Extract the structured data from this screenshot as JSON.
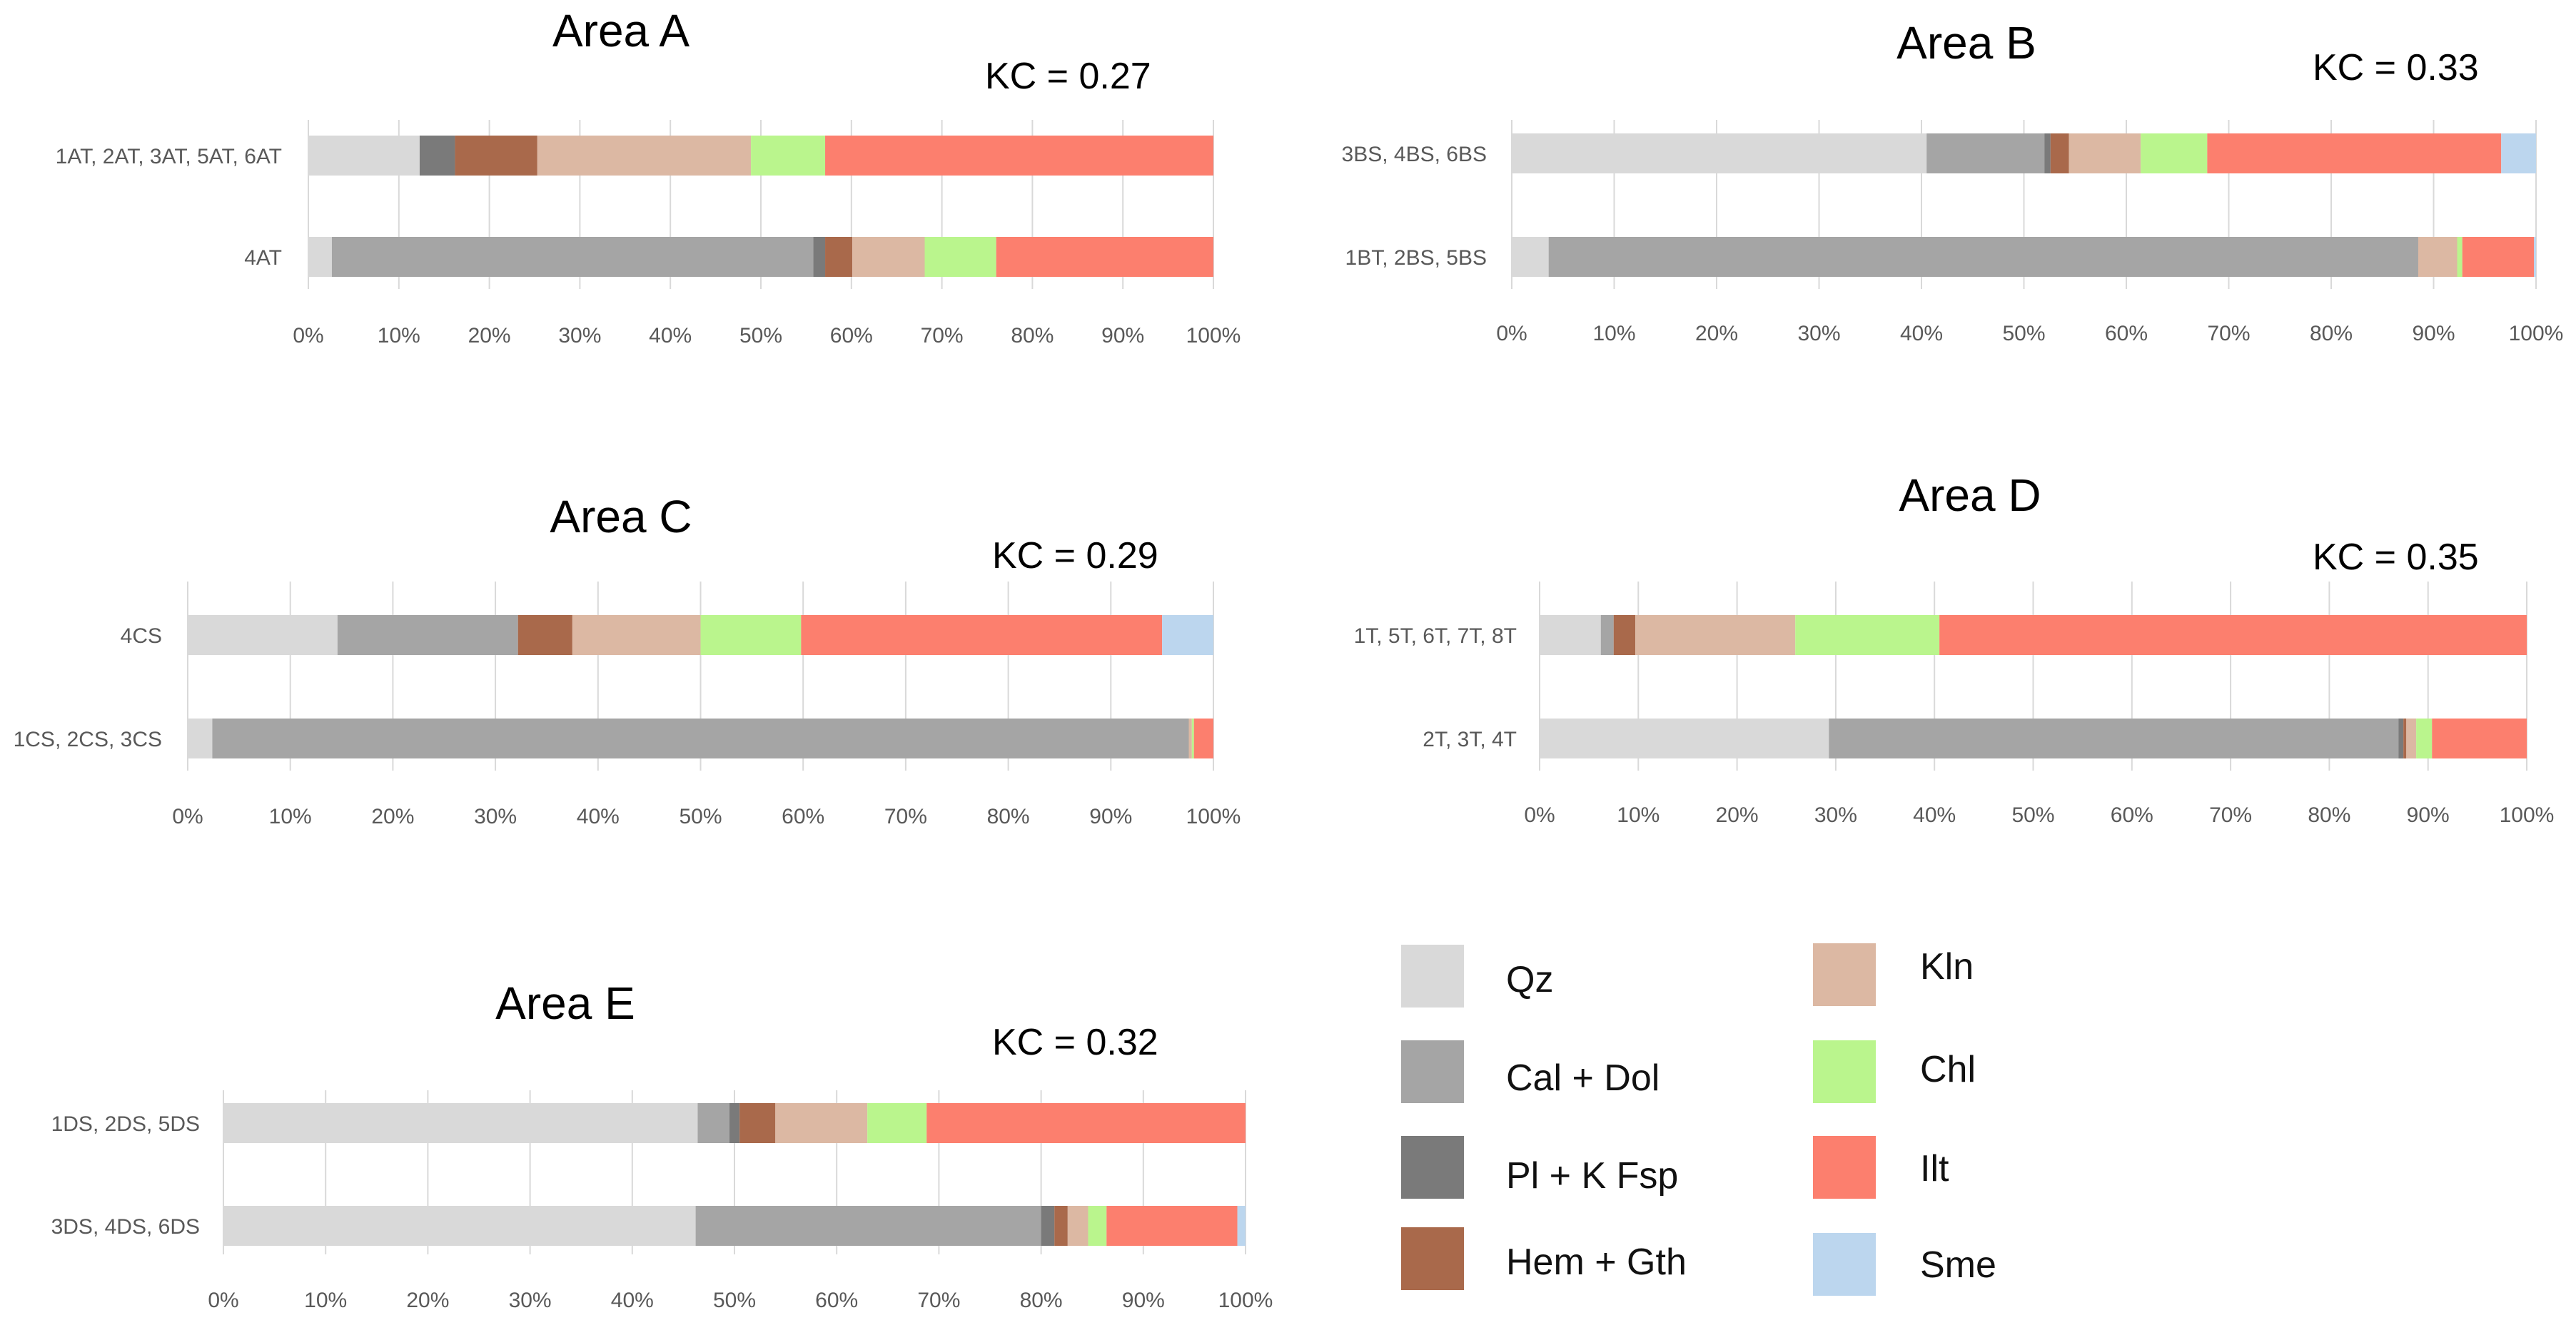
{
  "components": [
    "Qz",
    "Cal + Dol",
    "Pl + K Fsp",
    "Hem + Gth",
    "Kln",
    "Chl",
    "Ilt",
    "Sme"
  ],
  "colors": {
    "Qz": "#d9d9d9",
    "Cal + Dol": "#a5a5a5",
    "Pl + K Fsp": "#7a7a7a",
    "Hem + Gth": "#a9694b",
    "Kln": "#dcb8a3",
    "Chl": "#baf58d",
    "Ilt": "#fc7f6e",
    "Sme": "#bcd6ee"
  },
  "legend": {
    "items": [
      {
        "label": "Qz",
        "component": "Qz"
      },
      {
        "label": "Cal + Dol",
        "component": "Cal + Dol"
      },
      {
        "label": "Pl + K Fsp",
        "component": "Pl + K Fsp"
      },
      {
        "label": "Hem + Gth",
        "component": "Hem + Gth"
      },
      {
        "label": "Kln",
        "component": "Kln"
      },
      {
        "label": "Chl",
        "component": "Chl"
      },
      {
        "label": "Ilt",
        "component": "Ilt"
      },
      {
        "label": "Sme",
        "component": "Sme"
      }
    ]
  },
  "chart_data": [
    {
      "type": "bar",
      "stacked": "percent",
      "orientation": "horizontal",
      "title": "Area A",
      "annotation": "KC = 0.27",
      "categories": [
        "1AT, 2AT, 3AT, 5AT, 6AT",
        "4AT"
      ],
      "x_ticks": [
        "0%",
        "10%",
        "20%",
        "30%",
        "40%",
        "50%",
        "60%",
        "70%",
        "80%",
        "90%",
        "100%"
      ],
      "xlim": [
        0,
        100
      ],
      "series": [
        {
          "name": "Qz",
          "values": [
            12.3,
            2.6
          ]
        },
        {
          "name": "Cal + Dol",
          "values": [
            0,
            53.2
          ]
        },
        {
          "name": "Pl + K Fsp",
          "values": [
            3.9,
            1.3
          ]
        },
        {
          "name": "Hem + Gth",
          "values": [
            9.1,
            3.0
          ]
        },
        {
          "name": "Kln",
          "values": [
            23.6,
            8.0
          ]
        },
        {
          "name": "Chl",
          "values": [
            8.2,
            7.9
          ]
        },
        {
          "name": "Ilt",
          "values": [
            42.9,
            24.0
          ]
        },
        {
          "name": "Sme",
          "values": [
            0,
            0
          ]
        }
      ]
    },
    {
      "type": "bar",
      "stacked": "percent",
      "orientation": "horizontal",
      "title": "Area B",
      "annotation": "KC = 0.33",
      "categories": [
        "3BS, 4BS, 6BS",
        "1BT, 2BS, 5BS"
      ],
      "x_ticks": [
        "0%",
        "10%",
        "20%",
        "30%",
        "40%",
        "50%",
        "60%",
        "70%",
        "80%",
        "90%",
        "100%"
      ],
      "xlim": [
        0,
        100
      ],
      "series": [
        {
          "name": "Qz",
          "values": [
            40.5,
            3.6
          ]
        },
        {
          "name": "Cal + Dol",
          "values": [
            11.5,
            84.9
          ]
        },
        {
          "name": "Pl + K Fsp",
          "values": [
            0.6,
            0
          ]
        },
        {
          "name": "Hem + Gth",
          "values": [
            1.8,
            0
          ]
        },
        {
          "name": "Kln",
          "values": [
            7.0,
            3.8
          ]
        },
        {
          "name": "Chl",
          "values": [
            6.5,
            0.5
          ]
        },
        {
          "name": "Ilt",
          "values": [
            28.7,
            7.0
          ]
        },
        {
          "name": "Sme",
          "values": [
            3.4,
            0.2
          ]
        }
      ]
    },
    {
      "type": "bar",
      "stacked": "percent",
      "orientation": "horizontal",
      "title": "Area C",
      "annotation": "KC = 0.29",
      "categories": [
        "4CS",
        "1CS, 2CS, 3CS"
      ],
      "x_ticks": [
        "0%",
        "10%",
        "20%",
        "30%",
        "40%",
        "50%",
        "60%",
        "70%",
        "80%",
        "90%",
        "100%"
      ],
      "xlim": [
        0,
        100
      ],
      "series": [
        {
          "name": "Qz",
          "values": [
            14.6,
            2.4
          ]
        },
        {
          "name": "Cal + Dol",
          "values": [
            17.6,
            95.2
          ]
        },
        {
          "name": "Pl + K Fsp",
          "values": [
            0,
            0
          ]
        },
        {
          "name": "Hem + Gth",
          "values": [
            5.3,
            0
          ]
        },
        {
          "name": "Kln",
          "values": [
            12.5,
            0.3
          ]
        },
        {
          "name": "Chl",
          "values": [
            9.8,
            0.2
          ]
        },
        {
          "name": "Ilt",
          "values": [
            35.2,
            1.9
          ]
        },
        {
          "name": "Sme",
          "values": [
            5.0,
            0
          ]
        }
      ]
    },
    {
      "type": "bar",
      "stacked": "percent",
      "orientation": "horizontal",
      "title": "Area D",
      "annotation": "KC = 0.35",
      "categories": [
        "1T, 5T, 6T, 7T, 8T",
        "2T, 3T, 4T"
      ],
      "x_ticks": [
        "0%",
        "10%",
        "20%",
        "30%",
        "40%",
        "50%",
        "60%",
        "70%",
        "80%",
        "90%",
        "100%"
      ],
      "xlim": [
        0,
        100
      ],
      "series": [
        {
          "name": "Qz",
          "values": [
            6.2,
            29.3
          ]
        },
        {
          "name": "Cal + Dol",
          "values": [
            1.3,
            57.7
          ]
        },
        {
          "name": "Pl + K Fsp",
          "values": [
            0,
            0.5
          ]
        },
        {
          "name": "Hem + Gth",
          "values": [
            2.2,
            0.3
          ]
        },
        {
          "name": "Kln",
          "values": [
            16.2,
            1.0
          ]
        },
        {
          "name": "Chl",
          "values": [
            14.6,
            1.6
          ]
        },
        {
          "name": "Ilt",
          "values": [
            59.5,
            9.6
          ]
        },
        {
          "name": "Sme",
          "values": [
            0,
            0
          ]
        }
      ]
    },
    {
      "type": "bar",
      "stacked": "percent",
      "orientation": "horizontal",
      "title": "Area E",
      "annotation": "KC = 0.32",
      "categories": [
        "1DS, 2DS, 5DS",
        "3DS, 4DS, 6DS"
      ],
      "x_ticks": [
        "0%",
        "10%",
        "20%",
        "30%",
        "40%",
        "50%",
        "60%",
        "70%",
        "80%",
        "90%",
        "100%"
      ],
      "xlim": [
        0,
        100
      ],
      "series": [
        {
          "name": "Qz",
          "values": [
            46.4,
            46.2
          ]
        },
        {
          "name": "Cal + Dol",
          "values": [
            3.1,
            33.8
          ]
        },
        {
          "name": "Pl + K Fsp",
          "values": [
            1.0,
            1.3
          ]
        },
        {
          "name": "Hem + Gth",
          "values": [
            3.5,
            1.3
          ]
        },
        {
          "name": "Kln",
          "values": [
            9.0,
            2.0
          ]
        },
        {
          "name": "Chl",
          "values": [
            5.8,
            1.8
          ]
        },
        {
          "name": "Ilt",
          "values": [
            31.2,
            12.8
          ]
        },
        {
          "name": "Sme",
          "values": [
            0,
            0.8
          ]
        }
      ]
    }
  ]
}
